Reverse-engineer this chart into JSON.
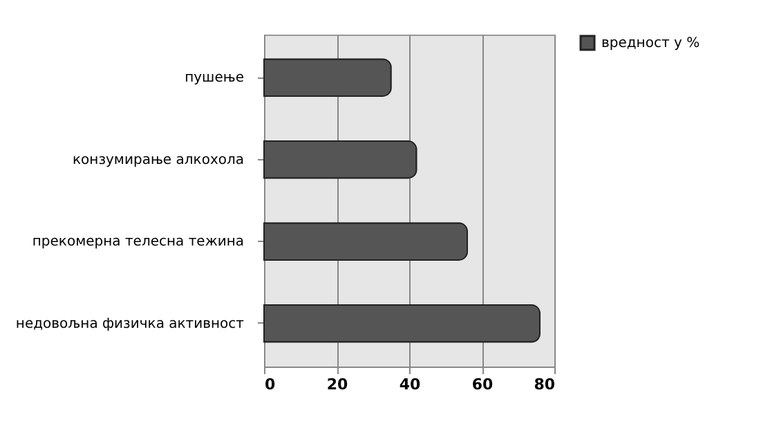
{
  "chart_data": {
    "type": "bar",
    "orientation": "horizontal",
    "categories": [
      "пушење",
      "конзумирање алкохола",
      "прекомерна телесна тежина",
      "недовољна физичка активност"
    ],
    "series": [
      {
        "name": "вредност у %",
        "color": "#555555",
        "values": [
          35,
          42,
          56,
          76
        ]
      }
    ],
    "xlim": [
      0,
      80
    ],
    "xticks": [
      0,
      20,
      40,
      60,
      80
    ],
    "grid": "x",
    "legend": "right"
  }
}
